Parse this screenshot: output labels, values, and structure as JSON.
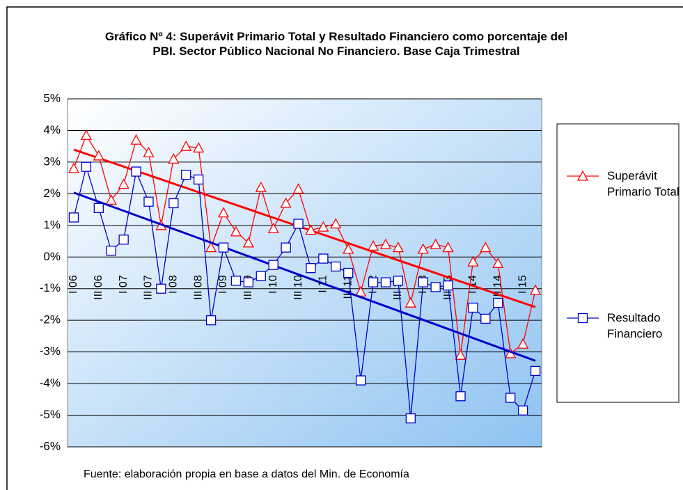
{
  "chart_data": {
    "type": "line",
    "title": "Gráfico Nº 4:  Superávit Primario Total y Resultado Financiero como porcentaje del PBI. Sector Público Nacional No Financiero. Base Caja Trimestral",
    "source": "Fuente: elaboración propia en base a datos del Min. de Economía",
    "categories": [
      "I 06",
      null,
      "III 06",
      null,
      "I 07",
      null,
      "III 07",
      null,
      "I 08",
      null,
      "III 08",
      null,
      "I 09",
      null,
      "III 09",
      null,
      "I 10",
      null,
      "III 10",
      null,
      "I 11",
      null,
      "III 11",
      null,
      "I 12",
      null,
      "III 12",
      null,
      "I 13",
      null,
      "III 13",
      null,
      "I 14",
      null,
      "III 14",
      null,
      "I 15",
      null
    ],
    "series": [
      {
        "name": "Superávit Primario Total",
        "color": "#ff0000",
        "marker": "triangle",
        "trendline": true,
        "values": [
          2.8,
          3.85,
          3.2,
          1.8,
          2.3,
          3.7,
          3.3,
          1.0,
          3.1,
          3.5,
          3.45,
          0.3,
          1.4,
          0.8,
          0.45,
          2.2,
          0.9,
          1.7,
          2.15,
          0.85,
          0.95,
          1.05,
          0.25,
          -1.1,
          0.35,
          0.4,
          0.3,
          -1.45,
          0.25,
          0.4,
          0.3,
          -3.1,
          -0.15,
          0.3,
          -0.2,
          -3.05,
          -2.75,
          -1.05
        ]
      },
      {
        "name": "Resultado Financiero",
        "color": "#0000cc",
        "marker": "square",
        "trendline": true,
        "values": [
          1.25,
          2.85,
          1.55,
          0.2,
          0.55,
          2.7,
          1.75,
          -1.0,
          1.7,
          2.6,
          2.45,
          -2.0,
          0.3,
          -0.75,
          -0.8,
          -0.6,
          -0.25,
          0.3,
          1.05,
          -0.35,
          -0.05,
          -0.3,
          -0.5,
          -3.9,
          -0.8,
          -0.8,
          -0.75,
          -5.1,
          -0.8,
          -0.95,
          -0.9,
          -4.4,
          -1.6,
          -1.95,
          -1.45,
          -4.45,
          -4.85,
          -3.6
        ]
      }
    ],
    "ylim": [
      -6,
      5
    ],
    "yticks": [
      {
        "value": -6,
        "label": "-6%"
      },
      {
        "value": -5,
        "label": "-5%"
      },
      {
        "value": -4,
        "label": "-4%"
      },
      {
        "value": -3,
        "label": "-3%"
      },
      {
        "value": -2,
        "label": "-2%"
      },
      {
        "value": -1,
        "label": "-1%"
      },
      {
        "value": 0,
        "label": "0%"
      },
      {
        "value": 1,
        "label": "1%"
      },
      {
        "value": 2,
        "label": "2%"
      },
      {
        "value": 3,
        "label": "3%"
      },
      {
        "value": 4,
        "label": "4%"
      },
      {
        "value": 5,
        "label": "5%"
      }
    ],
    "grid": true,
    "legend": "right"
  }
}
